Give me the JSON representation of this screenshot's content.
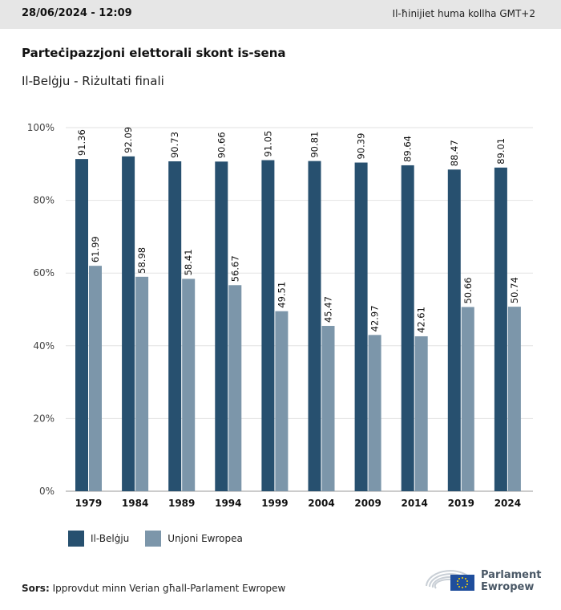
{
  "header": {
    "timestamp": "28/06/2024 - 12:09",
    "timezone_note": "Il-ħinijiet huma kollha GMT+2"
  },
  "title": "Parteċipazzjoni elettorali skont is-sena",
  "subtitle": "Il-Belġju - Riżultati finali",
  "colors": {
    "belgium": "#27506f",
    "eu": "#7c96aa",
    "grid": "#e2e2e2",
    "axis": "#999999"
  },
  "chart_data": {
    "type": "bar",
    "categories": [
      "1979",
      "1984",
      "1989",
      "1994",
      "1999",
      "2004",
      "2009",
      "2014",
      "2019",
      "2024"
    ],
    "series": [
      {
        "name": "Il-Belġju",
        "values": [
          91.36,
          92.09,
          90.73,
          90.66,
          91.05,
          90.81,
          90.39,
          89.64,
          88.47,
          89.01
        ]
      },
      {
        "name": "Unjoni Ewropea",
        "values": [
          61.99,
          58.98,
          58.41,
          56.67,
          49.51,
          45.47,
          42.97,
          42.61,
          50.66,
          50.74
        ]
      }
    ],
    "ylim": [
      0,
      100
    ],
    "yticks": [
      "0%",
      "20%",
      "40%",
      "60%",
      "80%",
      "100%"
    ],
    "grid": true,
    "legend_position": "bottom-left"
  },
  "legend": [
    {
      "label": "Il-Belġju"
    },
    {
      "label": "Unjoni Ewropea"
    }
  ],
  "source": {
    "label": "Sors:",
    "text": "Ipprovdut minn Verian għall-Parlament Ewropew"
  },
  "logo": {
    "line1": "Parlament",
    "line2": "Ewropew"
  }
}
